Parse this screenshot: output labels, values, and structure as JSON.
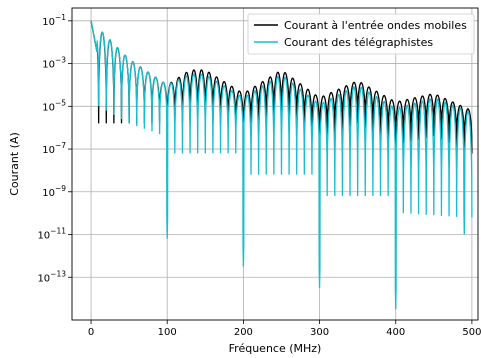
{
  "chart_data": {
    "type": "line",
    "title": "",
    "xlabel": "Fréquence (MHz)",
    "ylabel": "Courant (A)",
    "xlim": [
      -25,
      508
    ],
    "ylim_log10": [
      -15.0,
      -0.4
    ],
    "yscale": "log",
    "grid": true,
    "legend_position": "top-right",
    "x_ticks": [
      0,
      100,
      200,
      300,
      400,
      500
    ],
    "x_tick_labels": [
      "0",
      "100",
      "200",
      "300",
      "400",
      "500"
    ],
    "y_ticks_log10": [
      -1,
      -3,
      -5,
      -7,
      -9,
      -11,
      -13
    ],
    "y_tick_labels": [
      {
        "base": "10",
        "exp": "−1"
      },
      {
        "base": "10",
        "exp": "−3"
      },
      {
        "base": "10",
        "exp": "−5"
      },
      {
        "base": "10",
        "exp": "−7"
      },
      {
        "base": "10",
        "exp": "−9"
      },
      {
        "base": "10",
        "exp": "−11"
      },
      {
        "base": "10",
        "exp": "−13"
      }
    ],
    "series": [
      {
        "name": "Courant à l'entrée ondes mobiles",
        "color": "#000000",
        "frequency_range_mhz": [
          0,
          500
        ],
        "peak_log10_at": [
          [
            0,
            -1.0
          ],
          [
            50,
            -2.8
          ],
          [
            100,
            -4.0
          ],
          [
            130,
            -3.3
          ],
          [
            150,
            -3.3
          ],
          [
            200,
            -4.4
          ],
          [
            250,
            -3.3
          ],
          [
            300,
            -4.6
          ],
          [
            350,
            -3.8
          ],
          [
            400,
            -4.8
          ],
          [
            450,
            -4.4
          ],
          [
            500,
            -5.2
          ]
        ],
        "notch_spacing_mhz": 10,
        "notch_depth_log10": -5.8
      },
      {
        "name": "Courant des télégraphistes",
        "color": "#17becf",
        "frequency_range_mhz": [
          0,
          500
        ],
        "peak_log10_at": [
          [
            0,
            -1.0
          ],
          [
            50,
            -2.8
          ],
          [
            100,
            -4.0
          ],
          [
            130,
            -3.5
          ],
          [
            150,
            -3.5
          ],
          [
            200,
            -4.6
          ],
          [
            250,
            -3.5
          ],
          [
            300,
            -4.9
          ],
          [
            350,
            -4.0
          ],
          [
            400,
            -5.1
          ],
          [
            450,
            -4.6
          ],
          [
            500,
            -5.3
          ]
        ],
        "notch_spacing_mhz": 10,
        "notch_floor_log10_at": [
          [
            10,
            -5.0
          ],
          [
            50,
            -5.8
          ],
          [
            90,
            -6.3
          ],
          [
            110,
            -7.2
          ],
          [
            190,
            -7.2
          ],
          [
            210,
            -8.2
          ],
          [
            290,
            -8.2
          ],
          [
            310,
            -9.2
          ],
          [
            390,
            -9.2
          ],
          [
            410,
            -10.0
          ],
          [
            490,
            -10.2
          ]
        ],
        "deep_notches": [
          {
            "freq": 100,
            "log10": -11.2
          },
          {
            "freq": 200,
            "log10": -12.5
          },
          {
            "freq": 300,
            "log10": -13.5
          },
          {
            "freq": 400,
            "log10": -14.5
          },
          {
            "freq": 490,
            "log10": -11.0
          }
        ]
      }
    ]
  }
}
